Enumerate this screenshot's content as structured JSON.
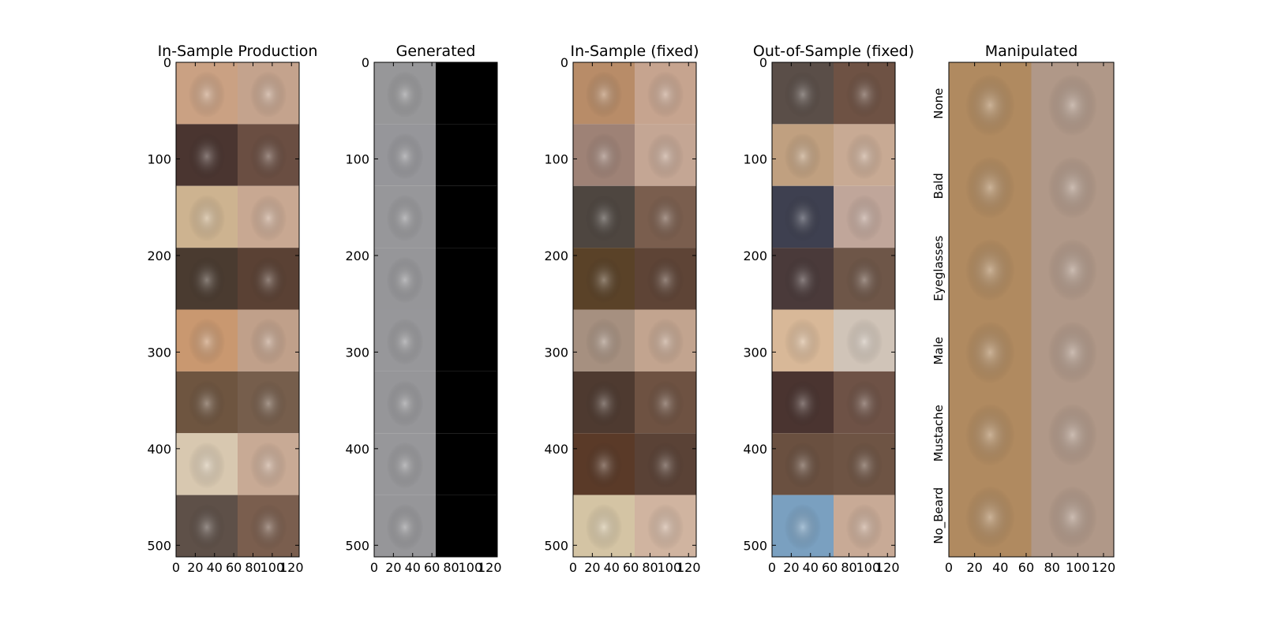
{
  "chart_data": [
    {
      "type": "image-grid",
      "title": "In-Sample Production",
      "xlim": [
        0,
        128
      ],
      "ylim": [
        512,
        0
      ],
      "xticks": [
        0,
        20,
        40,
        60,
        80,
        100,
        120
      ],
      "yticks": [
        0,
        100,
        200,
        300,
        400,
        500
      ],
      "rows": 8,
      "cols": 2,
      "cells": [
        [
          "#caa183",
          "#c4a38d"
        ],
        [
          "#4a3530",
          "#6a4e42"
        ],
        [
          "#cdb390",
          "#c8a892"
        ],
        [
          "#4a3b30",
          "#5a4134"
        ],
        [
          "#c99870",
          "#c0a08a"
        ],
        [
          "#6e5540",
          "#765e4c"
        ],
        [
          "#d8c8b0",
          "#c8aa95"
        ],
        [
          "#5e5048",
          "#7a5e4e"
        ]
      ],
      "row_labels": []
    },
    {
      "type": "image-grid",
      "title": "Generated",
      "xlim": [
        0,
        128
      ],
      "ylim": [
        512,
        0
      ],
      "xticks": [
        0,
        20,
        40,
        60,
        80,
        100,
        120
      ],
      "yticks": [
        0,
        100,
        200,
        300,
        400,
        500
      ],
      "rows": 8,
      "cols": 2,
      "cells": [
        [
          "#979799",
          "#000000"
        ],
        [
          "#96969a",
          "#000000"
        ],
        [
          "#97979a",
          "#000000"
        ],
        [
          "#969699",
          "#000000"
        ],
        [
          "#97979a",
          "#000000"
        ],
        [
          "#969699",
          "#000000"
        ],
        [
          "#97979a",
          "#000000"
        ],
        [
          "#969699",
          "#000000"
        ]
      ],
      "row_labels": []
    },
    {
      "type": "image-grid",
      "title": "In-Sample (fixed)",
      "xlim": [
        0,
        128
      ],
      "ylim": [
        512,
        0
      ],
      "xticks": [
        0,
        20,
        40,
        60,
        80,
        100,
        120
      ],
      "yticks": [
        0,
        100,
        200,
        300,
        400,
        500
      ],
      "rows": 8,
      "cols": 2,
      "cells": [
        [
          "#b88c68",
          "#c6a48f"
        ],
        [
          "#9e8276",
          "#c4a694"
        ],
        [
          "#4e4640",
          "#7a5e4e"
        ],
        [
          "#5a4228",
          "#5e4436"
        ],
        [
          "#a69080",
          "#c2a48f"
        ],
        [
          "#4e3a30",
          "#6e5242"
        ],
        [
          "#5a3a28",
          "#5a4236"
        ],
        [
          "#d4c4a4",
          "#d0b4a0"
        ]
      ],
      "row_labels": []
    },
    {
      "type": "image-grid",
      "title": "Out-of-Sample (fixed)",
      "xlim": [
        0,
        128
      ],
      "ylim": [
        512,
        0
      ],
      "xticks": [
        0,
        20,
        40,
        60,
        80,
        100,
        120
      ],
      "yticks": [
        0,
        100,
        200,
        300,
        400,
        500
      ],
      "rows": 8,
      "cols": 2,
      "cells": [
        [
          "#5a4e48",
          "#6e5244"
        ],
        [
          "#c0a080",
          "#c8aa94"
        ],
        [
          "#3e4050",
          "#c0a69a"
        ],
        [
          "#4a3a3a",
          "#6e5648"
        ],
        [
          "#d8b898",
          "#d0c4b8"
        ],
        [
          "#4a3430",
          "#6e5246"
        ],
        [
          "#6a5040",
          "#6e5444"
        ],
        [
          "#7aa0c0",
          "#c8aa96"
        ]
      ],
      "row_labels": []
    },
    {
      "type": "image-grid",
      "title": "Manipulated",
      "xlim": [
        0,
        128
      ],
      "ylim": [
        384,
        0
      ],
      "xticks": [
        0,
        20,
        40,
        60,
        80,
        100,
        120
      ],
      "yticks": [],
      "rows": 6,
      "cols": 2,
      "cells": [
        [
          "#b08a60",
          "#b09888"
        ],
        [
          "#b08a60",
          "#b09888"
        ],
        [
          "#b08a60",
          "#b09888"
        ],
        [
          "#b08a60",
          "#b09888"
        ],
        [
          "#b08a60",
          "#b09888"
        ],
        [
          "#b08a60",
          "#b09888"
        ]
      ],
      "row_labels": [
        "None",
        "Bald",
        "Eyeglasses",
        "Male",
        "Mustache",
        "No_Beard"
      ]
    }
  ]
}
